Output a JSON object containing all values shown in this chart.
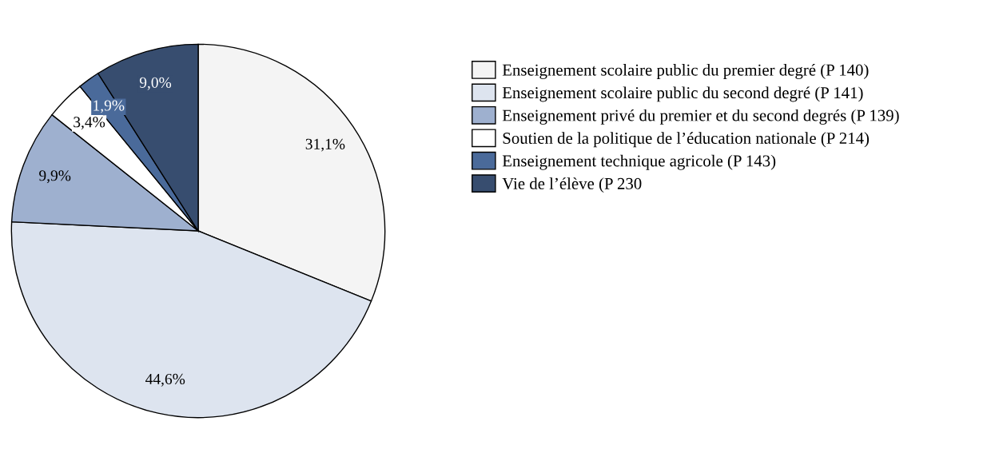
{
  "chart_data": {
    "type": "pie",
    "categories": [
      "Enseignement scolaire public du premier degré (P 140)",
      "Enseignement scolaire public du second degré (P 141)",
      "Enseignement privé du premier et du second degrés (P 139)",
      "Soutien de la politique de l’éducation nationale (P 214)",
      "Enseignement technique agricole (P 143)",
      "Vie de l’élève (P 230"
    ],
    "values": [
      31.1,
      44.6,
      9.9,
      3.4,
      1.9,
      9.0
    ],
    "value_labels": [
      "31,1%",
      "44,6%",
      "9,9%",
      "3,4%",
      "1,9%",
      "9,0%"
    ],
    "colors": [
      "#f4f4f4",
      "#dde4ef",
      "#9eb0cf",
      "#ffffff",
      "#4a6a9a",
      "#374d6f"
    ],
    "legend": "right"
  }
}
